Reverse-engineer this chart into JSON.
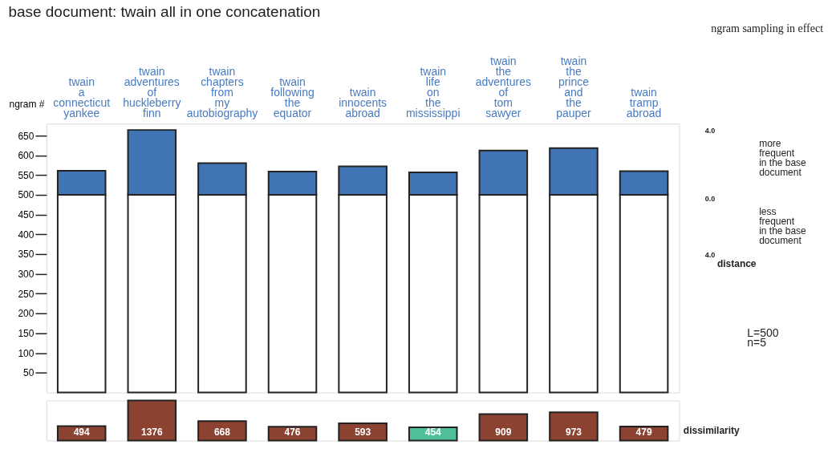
{
  "chart_data": [
    {
      "type": "bar",
      "title": "base document: twain all in one concatenation",
      "ylabel": "ngram #",
      "stacked": true,
      "categories": [
        "twain a connecticut yankee",
        "twain adventures of huckleberry finn",
        "twain chapters from my autobiography",
        "twain following the equator",
        "twain innocents abroad",
        "twain life on the mississippi",
        "twain the adventures of tom sawyer",
        "twain the prince and the pauper",
        "twain tramp abroad"
      ],
      "series": [
        {
          "color": "#ffffff",
          "values": [
            500,
            500,
            500,
            500,
            500,
            500,
            500,
            500,
            500
          ]
        },
        {
          "color": "#4074b4",
          "values": [
            61,
            164,
            80,
            59,
            72,
            57,
            112,
            118,
            60
          ]
        }
      ],
      "ylim": [
        0,
        680
      ],
      "yticks": [
        50,
        100,
        150,
        200,
        250,
        300,
        350,
        400,
        450,
        500,
        550,
        600,
        650
      ],
      "clabel": "distance",
      "annotations": [
        "ngram sampling in effect",
        "4.0",
        "more frequent in the base document",
        "0.0",
        "less frequent in the base document",
        "4.0",
        "L=500",
        "n=5"
      ]
    },
    {
      "type": "bar",
      "data_labels": true,
      "ylabel": "dissimilarity",
      "categories": [
        null,
        null,
        null,
        null,
        null,
        null,
        null,
        null,
        null
      ],
      "values": [
        494,
        1376,
        668,
        476,
        593,
        454,
        909,
        973,
        479
      ],
      "colors": [
        "#8b4230",
        "#8b4230",
        "#8b4230",
        "#8b4230",
        "#8b4230",
        "#4ebf99",
        "#8b4230",
        "#8b4230",
        "#8b4230"
      ]
    }
  ]
}
